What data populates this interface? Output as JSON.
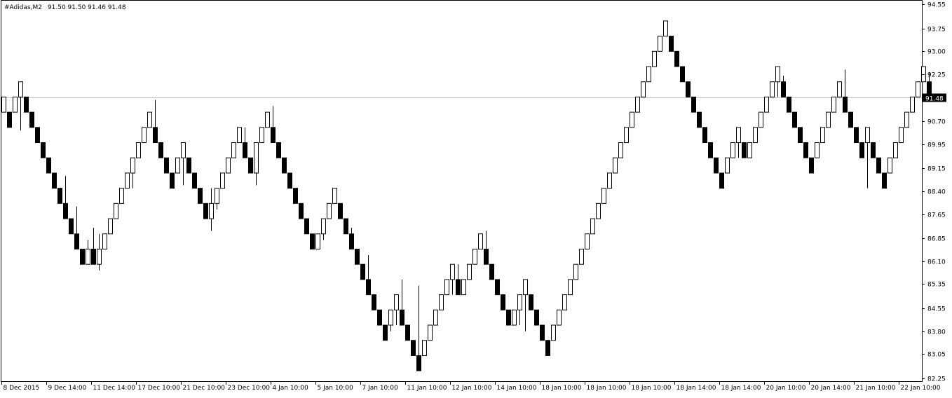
{
  "header": {
    "symbol": "#Adidas,M2",
    "ohlc": "91.50 91.50 91.46 91.48"
  },
  "current_price_label": "91.48",
  "chart_data": {
    "type": "candlestick",
    "symbol": "#Adidas",
    "timeframe": "M2",
    "current_price": 91.48,
    "ylim": [
      82.25,
      94.55
    ],
    "y_ticks": [
      "94.55",
      "93.75",
      "93.00",
      "92.25",
      "91.48",
      "90.70",
      "89.95",
      "89.15",
      "88.40",
      "87.65",
      "86.85",
      "86.10",
      "85.35",
      "84.55",
      "83.80",
      "83.05",
      "82.25"
    ],
    "x_ticks": [
      {
        "label": "8 Dec 2015",
        "bar": 0
      },
      {
        "label": "9 Dec 14:00",
        "bar": 8
      },
      {
        "label": "11 Dec 14:00",
        "bar": 16
      },
      {
        "label": "17 Dec 10:00",
        "bar": 24
      },
      {
        "label": "21 Dec 10:00",
        "bar": 32
      },
      {
        "label": "23 Dec 10:00",
        "bar": 40
      },
      {
        "label": "4 Jan 10:00",
        "bar": 48
      },
      {
        "label": "5 Jan 10:00",
        "bar": 56
      },
      {
        "label": "7 Jan 10:00",
        "bar": 64
      },
      {
        "label": "11 Jan 10:00",
        "bar": 72
      },
      {
        "label": "12 Jan 10:00",
        "bar": 80
      },
      {
        "label": "14 Jan 10:00",
        "bar": 88
      },
      {
        "label": "18 Jan 10:00",
        "bar": 96
      },
      {
        "label": "18 Jan 10:00",
        "bar": 104
      },
      {
        "label": "18 Jan 10:00",
        "bar": 112
      },
      {
        "label": "18 Jan 14:00",
        "bar": 120
      },
      {
        "label": "18 Jan 14:00",
        "bar": 128
      },
      {
        "label": "20 Jan 10:00",
        "bar": 136
      },
      {
        "label": "20 Jan 14:00",
        "bar": 144
      },
      {
        "label": "21 Jan 10:00",
        "bar": 152
      },
      {
        "label": "22 Jan 10:00",
        "bar": 160
      }
    ],
    "candles": [
      {
        "o": 91.0,
        "h": 91.5,
        "l": 91.0,
        "c": 91.5
      },
      {
        "o": 91.0,
        "h": 91.0,
        "l": 90.5,
        "c": 90.5
      },
      {
        "o": 91.0,
        "h": 91.5,
        "l": 91.0,
        "c": 91.5
      },
      {
        "o": 91.5,
        "h": 92.0,
        "l": 90.4,
        "c": 92.0
      },
      {
        "o": 91.5,
        "h": 91.5,
        "l": 91.0,
        "c": 91.0
      },
      {
        "o": 91.0,
        "h": 91.0,
        "l": 90.5,
        "c": 90.5
      },
      {
        "o": 90.5,
        "h": 90.5,
        "l": 90.0,
        "c": 90.0
      },
      {
        "o": 90.0,
        "h": 90.0,
        "l": 89.5,
        "c": 89.5
      },
      {
        "o": 89.5,
        "h": 89.5,
        "l": 89.0,
        "c": 89.0
      },
      {
        "o": 89.0,
        "h": 89.0,
        "l": 88.5,
        "c": 88.5
      },
      {
        "o": 88.5,
        "h": 88.5,
        "l": 88.0,
        "c": 88.0
      },
      {
        "o": 88.0,
        "h": 88.9,
        "l": 87.5,
        "c": 87.5
      },
      {
        "o": 87.5,
        "h": 87.5,
        "l": 87.0,
        "c": 87.0
      },
      {
        "o": 87.0,
        "h": 87.9,
        "l": 86.5,
        "c": 86.5
      },
      {
        "o": 86.5,
        "h": 86.5,
        "l": 86.0,
        "c": 86.0
      },
      {
        "o": 86.0,
        "h": 86.8,
        "l": 86.0,
        "c": 86.5
      },
      {
        "o": 86.5,
        "h": 87.2,
        "l": 86.0,
        "c": 86.0
      },
      {
        "o": 86.0,
        "h": 87.0,
        "l": 85.8,
        "c": 86.5
      },
      {
        "o": 86.5,
        "h": 87.0,
        "l": 86.5,
        "c": 87.0
      },
      {
        "o": 87.0,
        "h": 87.5,
        "l": 87.0,
        "c": 87.5
      },
      {
        "o": 87.5,
        "h": 88.0,
        "l": 87.5,
        "c": 88.0
      },
      {
        "o": 88.0,
        "h": 88.5,
        "l": 88.0,
        "c": 88.5
      },
      {
        "o": 88.5,
        "h": 89.0,
        "l": 88.5,
        "c": 89.0
      },
      {
        "o": 89.0,
        "h": 89.5,
        "l": 88.5,
        "c": 89.5
      },
      {
        "o": 89.5,
        "h": 90.0,
        "l": 89.5,
        "c": 90.0
      },
      {
        "o": 90.0,
        "h": 90.5,
        "l": 90.0,
        "c": 90.5
      },
      {
        "o": 90.5,
        "h": 91.0,
        "l": 90.5,
        "c": 91.0
      },
      {
        "o": 90.5,
        "h": 91.4,
        "l": 90.0,
        "c": 90.0
      },
      {
        "o": 90.0,
        "h": 90.0,
        "l": 89.5,
        "c": 89.5
      },
      {
        "o": 89.5,
        "h": 89.5,
        "l": 89.0,
        "c": 89.0
      },
      {
        "o": 89.0,
        "h": 89.0,
        "l": 88.5,
        "c": 88.5
      },
      {
        "o": 89.0,
        "h": 89.5,
        "l": 89.0,
        "c": 89.5
      },
      {
        "o": 89.5,
        "h": 90.0,
        "l": 88.6,
        "c": 90.0
      },
      {
        "o": 89.5,
        "h": 89.5,
        "l": 89.0,
        "c": 89.0
      },
      {
        "o": 89.0,
        "h": 89.0,
        "l": 88.5,
        "c": 88.5
      },
      {
        "o": 88.5,
        "h": 88.5,
        "l": 88.0,
        "c": 88.0
      },
      {
        "o": 88.0,
        "h": 88.0,
        "l": 87.5,
        "c": 87.5
      },
      {
        "o": 87.5,
        "h": 88.5,
        "l": 87.1,
        "c": 88.0
      },
      {
        "o": 88.0,
        "h": 88.5,
        "l": 87.8,
        "c": 88.5
      },
      {
        "o": 88.5,
        "h": 89.0,
        "l": 88.5,
        "c": 89.0
      },
      {
        "o": 89.0,
        "h": 89.5,
        "l": 89.0,
        "c": 89.5
      },
      {
        "o": 89.5,
        "h": 90.0,
        "l": 89.5,
        "c": 90.0
      },
      {
        "o": 90.0,
        "h": 90.5,
        "l": 90.0,
        "c": 90.5
      },
      {
        "o": 90.0,
        "h": 90.5,
        "l": 89.5,
        "c": 89.5
      },
      {
        "o": 89.5,
        "h": 89.5,
        "l": 89.0,
        "c": 89.0
      },
      {
        "o": 89.0,
        "h": 90.0,
        "l": 88.6,
        "c": 90.0
      },
      {
        "o": 90.0,
        "h": 90.5,
        "l": 90.0,
        "c": 90.5
      },
      {
        "o": 90.5,
        "h": 91.0,
        "l": 90.5,
        "c": 91.0
      },
      {
        "o": 90.5,
        "h": 91.2,
        "l": 90.0,
        "c": 90.0
      },
      {
        "o": 90.0,
        "h": 90.0,
        "l": 89.5,
        "c": 89.5
      },
      {
        "o": 89.5,
        "h": 89.5,
        "l": 89.0,
        "c": 89.0
      },
      {
        "o": 89.0,
        "h": 89.0,
        "l": 88.5,
        "c": 88.5
      },
      {
        "o": 88.5,
        "h": 88.5,
        "l": 88.0,
        "c": 88.0
      },
      {
        "o": 88.0,
        "h": 88.0,
        "l": 87.5,
        "c": 87.5
      },
      {
        "o": 87.5,
        "h": 87.5,
        "l": 87.0,
        "c": 87.0
      },
      {
        "o": 87.0,
        "h": 87.0,
        "l": 86.5,
        "c": 86.5
      },
      {
        "o": 86.5,
        "h": 87.0,
        "l": 86.5,
        "c": 87.0
      },
      {
        "o": 87.0,
        "h": 87.5,
        "l": 86.8,
        "c": 87.5
      },
      {
        "o": 87.5,
        "h": 88.0,
        "l": 87.5,
        "c": 88.0
      },
      {
        "o": 88.0,
        "h": 88.5,
        "l": 88.0,
        "c": 88.5
      },
      {
        "o": 88.0,
        "h": 88.0,
        "l": 87.5,
        "c": 87.5
      },
      {
        "o": 87.5,
        "h": 87.5,
        "l": 87.0,
        "c": 87.0
      },
      {
        "o": 87.0,
        "h": 87.2,
        "l": 86.5,
        "c": 86.5
      },
      {
        "o": 86.5,
        "h": 86.5,
        "l": 86.0,
        "c": 86.0
      },
      {
        "o": 86.0,
        "h": 86.0,
        "l": 85.5,
        "c": 85.5
      },
      {
        "o": 85.5,
        "h": 86.3,
        "l": 85.0,
        "c": 85.0
      },
      {
        "o": 85.0,
        "h": 85.0,
        "l": 84.5,
        "c": 84.5
      },
      {
        "o": 84.5,
        "h": 84.5,
        "l": 84.0,
        "c": 84.0
      },
      {
        "o": 84.0,
        "h": 84.0,
        "l": 83.5,
        "c": 83.5
      },
      {
        "o": 84.0,
        "h": 84.5,
        "l": 83.8,
        "c": 84.5
      },
      {
        "o": 84.5,
        "h": 85.0,
        "l": 84.0,
        "c": 85.0
      },
      {
        "o": 84.5,
        "h": 85.5,
        "l": 84.0,
        "c": 84.0
      },
      {
        "o": 84.0,
        "h": 84.0,
        "l": 83.5,
        "c": 83.5
      },
      {
        "o": 83.5,
        "h": 83.5,
        "l": 83.0,
        "c": 83.0
      },
      {
        "o": 83.0,
        "h": 85.3,
        "l": 82.5,
        "c": 82.5
      },
      {
        "o": 83.0,
        "h": 83.5,
        "l": 83.0,
        "c": 83.5
      },
      {
        "o": 83.5,
        "h": 84.0,
        "l": 83.5,
        "c": 84.0
      },
      {
        "o": 84.0,
        "h": 84.5,
        "l": 84.0,
        "c": 84.5
      },
      {
        "o": 84.5,
        "h": 85.0,
        "l": 84.5,
        "c": 85.0
      },
      {
        "o": 85.0,
        "h": 85.5,
        "l": 85.0,
        "c": 85.5
      },
      {
        "o": 85.5,
        "h": 86.0,
        "l": 85.0,
        "c": 86.0
      },
      {
        "o": 85.5,
        "h": 86.0,
        "l": 85.0,
        "c": 85.0
      },
      {
        "o": 85.0,
        "h": 85.5,
        "l": 85.0,
        "c": 85.5
      },
      {
        "o": 85.5,
        "h": 86.0,
        "l": 85.5,
        "c": 86.0
      },
      {
        "o": 86.0,
        "h": 86.5,
        "l": 86.0,
        "c": 86.5
      },
      {
        "o": 86.5,
        "h": 87.0,
        "l": 86.5,
        "c": 87.0
      },
      {
        "o": 86.5,
        "h": 87.1,
        "l": 86.0,
        "c": 86.0
      },
      {
        "o": 86.0,
        "h": 86.0,
        "l": 85.5,
        "c": 85.5
      },
      {
        "o": 85.5,
        "h": 85.5,
        "l": 85.0,
        "c": 85.0
      },
      {
        "o": 85.0,
        "h": 85.0,
        "l": 84.5,
        "c": 84.5
      },
      {
        "o": 84.5,
        "h": 84.5,
        "l": 84.0,
        "c": 84.0
      },
      {
        "o": 84.0,
        "h": 84.5,
        "l": 84.0,
        "c": 84.5
      },
      {
        "o": 84.5,
        "h": 85.0,
        "l": 84.0,
        "c": 85.0
      },
      {
        "o": 85.0,
        "h": 85.5,
        "l": 83.8,
        "c": 85.5
      },
      {
        "o": 85.0,
        "h": 85.0,
        "l": 84.5,
        "c": 84.5
      },
      {
        "o": 84.5,
        "h": 84.5,
        "l": 84.0,
        "c": 84.0
      },
      {
        "o": 84.0,
        "h": 84.0,
        "l": 83.5,
        "c": 83.5
      },
      {
        "o": 83.5,
        "h": 83.5,
        "l": 83.0,
        "c": 83.0
      },
      {
        "o": 83.5,
        "h": 84.0,
        "l": 83.5,
        "c": 84.0
      },
      {
        "o": 84.0,
        "h": 84.5,
        "l": 84.0,
        "c": 84.5
      },
      {
        "o": 84.5,
        "h": 85.0,
        "l": 84.5,
        "c": 85.0
      },
      {
        "o": 85.0,
        "h": 85.5,
        "l": 85.0,
        "c": 85.5
      },
      {
        "o": 85.5,
        "h": 86.0,
        "l": 85.5,
        "c": 86.0
      },
      {
        "o": 86.0,
        "h": 86.5,
        "l": 86.0,
        "c": 86.5
      },
      {
        "o": 86.5,
        "h": 87.0,
        "l": 86.5,
        "c": 87.0
      },
      {
        "o": 87.0,
        "h": 87.5,
        "l": 87.0,
        "c": 87.5
      },
      {
        "o": 87.5,
        "h": 88.0,
        "l": 87.5,
        "c": 88.0
      },
      {
        "o": 88.0,
        "h": 88.5,
        "l": 88.0,
        "c": 88.5
      },
      {
        "o": 88.5,
        "h": 89.0,
        "l": 88.5,
        "c": 89.0
      },
      {
        "o": 89.0,
        "h": 89.5,
        "l": 89.0,
        "c": 89.5
      },
      {
        "o": 89.5,
        "h": 90.0,
        "l": 89.5,
        "c": 90.0
      },
      {
        "o": 90.0,
        "h": 90.5,
        "l": 90.0,
        "c": 90.5
      },
      {
        "o": 90.5,
        "h": 91.0,
        "l": 90.5,
        "c": 91.0
      },
      {
        "o": 91.0,
        "h": 91.5,
        "l": 91.0,
        "c": 91.5
      },
      {
        "o": 91.5,
        "h": 92.0,
        "l": 91.5,
        "c": 92.0
      },
      {
        "o": 92.0,
        "h": 92.5,
        "l": 92.0,
        "c": 92.5
      },
      {
        "o": 92.5,
        "h": 93.0,
        "l": 92.5,
        "c": 93.0
      },
      {
        "o": 93.0,
        "h": 93.5,
        "l": 93.0,
        "c": 93.5
      },
      {
        "o": 93.5,
        "h": 94.0,
        "l": 93.5,
        "c": 94.0
      },
      {
        "o": 93.5,
        "h": 93.5,
        "l": 93.0,
        "c": 93.0
      },
      {
        "o": 93.0,
        "h": 93.0,
        "l": 92.5,
        "c": 92.5
      },
      {
        "o": 92.5,
        "h": 92.5,
        "l": 92.0,
        "c": 92.0
      },
      {
        "o": 92.0,
        "h": 92.0,
        "l": 91.5,
        "c": 91.5
      },
      {
        "o": 91.5,
        "h": 91.5,
        "l": 91.0,
        "c": 91.0
      },
      {
        "o": 91.0,
        "h": 91.0,
        "l": 90.5,
        "c": 90.5
      },
      {
        "o": 90.5,
        "h": 90.5,
        "l": 90.0,
        "c": 90.0
      },
      {
        "o": 90.0,
        "h": 90.0,
        "l": 89.5,
        "c": 89.5
      },
      {
        "o": 89.5,
        "h": 89.5,
        "l": 89.0,
        "c": 89.0
      },
      {
        "o": 89.0,
        "h": 89.0,
        "l": 88.5,
        "c": 88.5
      },
      {
        "o": 89.0,
        "h": 89.5,
        "l": 89.0,
        "c": 89.5
      },
      {
        "o": 89.5,
        "h": 90.0,
        "l": 89.5,
        "c": 90.0
      },
      {
        "o": 90.0,
        "h": 90.5,
        "l": 89.5,
        "c": 90.5
      },
      {
        "o": 90.0,
        "h": 90.0,
        "l": 89.5,
        "c": 89.5
      },
      {
        "o": 89.5,
        "h": 90.0,
        "l": 89.5,
        "c": 90.0
      },
      {
        "o": 90.0,
        "h": 90.5,
        "l": 90.0,
        "c": 90.5
      },
      {
        "o": 90.5,
        "h": 91.0,
        "l": 90.5,
        "c": 91.0
      },
      {
        "o": 91.0,
        "h": 91.5,
        "l": 91.0,
        "c": 91.5
      },
      {
        "o": 91.5,
        "h": 92.0,
        "l": 91.5,
        "c": 92.0
      },
      {
        "o": 92.0,
        "h": 92.5,
        "l": 91.5,
        "c": 92.5
      },
      {
        "o": 92.0,
        "h": 92.2,
        "l": 91.5,
        "c": 91.5
      },
      {
        "o": 91.5,
        "h": 91.5,
        "l": 91.0,
        "c": 91.0
      },
      {
        "o": 91.0,
        "h": 91.0,
        "l": 90.5,
        "c": 90.5
      },
      {
        "o": 90.5,
        "h": 90.5,
        "l": 90.0,
        "c": 90.0
      },
      {
        "o": 90.0,
        "h": 90.0,
        "l": 89.5,
        "c": 89.5
      },
      {
        "o": 89.5,
        "h": 89.5,
        "l": 89.0,
        "c": 89.0
      },
      {
        "o": 89.5,
        "h": 90.0,
        "l": 89.5,
        "c": 90.0
      },
      {
        "o": 90.0,
        "h": 90.5,
        "l": 90.0,
        "c": 90.5
      },
      {
        "o": 90.5,
        "h": 91.0,
        "l": 90.5,
        "c": 91.0
      },
      {
        "o": 91.0,
        "h": 91.5,
        "l": 91.0,
        "c": 91.5
      },
      {
        "o": 91.5,
        "h": 92.0,
        "l": 91.5,
        "c": 92.0
      },
      {
        "o": 91.5,
        "h": 92.4,
        "l": 91.0,
        "c": 91.0
      },
      {
        "o": 91.0,
        "h": 91.0,
        "l": 90.5,
        "c": 90.5
      },
      {
        "o": 90.5,
        "h": 90.5,
        "l": 90.0,
        "c": 90.0
      },
      {
        "o": 90.0,
        "h": 90.0,
        "l": 89.5,
        "c": 89.5
      },
      {
        "o": 90.0,
        "h": 90.5,
        "l": 88.5,
        "c": 90.5
      },
      {
        "o": 90.0,
        "h": 90.0,
        "l": 89.5,
        "c": 89.5
      },
      {
        "o": 89.5,
        "h": 89.5,
        "l": 89.0,
        "c": 89.0
      },
      {
        "o": 89.0,
        "h": 89.0,
        "l": 88.5,
        "c": 88.5
      },
      {
        "o": 89.0,
        "h": 89.5,
        "l": 89.0,
        "c": 89.5
      },
      {
        "o": 89.5,
        "h": 90.0,
        "l": 89.5,
        "c": 90.0
      },
      {
        "o": 90.0,
        "h": 90.5,
        "l": 90.0,
        "c": 90.5
      },
      {
        "o": 90.5,
        "h": 91.0,
        "l": 90.5,
        "c": 91.0
      },
      {
        "o": 91.0,
        "h": 91.5,
        "l": 91.0,
        "c": 91.5
      },
      {
        "o": 91.5,
        "h": 92.0,
        "l": 91.5,
        "c": 92.0
      },
      {
        "o": 92.0,
        "h": 92.5,
        "l": 92.0,
        "c": 92.5
      },
      {
        "o": 92.0,
        "h": 92.3,
        "l": 91.5,
        "c": 91.5
      },
      {
        "o": 91.5,
        "h": 91.5,
        "l": 91.46,
        "c": 91.48
      }
    ]
  }
}
